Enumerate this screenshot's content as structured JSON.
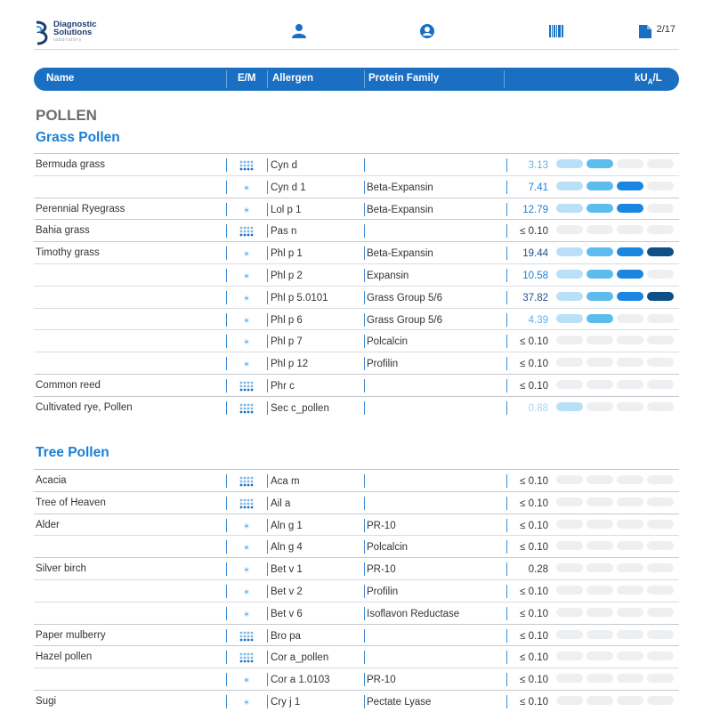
{
  "brand": {
    "name_line1": "Diagnostic",
    "name_line2": "Solutions",
    "tagline": "laboratory"
  },
  "header": {
    "page_indicator": "2/17"
  },
  "columns": {
    "name": "Name",
    "em": "E/M",
    "allergen": "Allergen",
    "family": "Protein Family",
    "unit_main": "kU",
    "unit_sub": "A",
    "unit_tail": "/L"
  },
  "section_title": "POLLEN",
  "colors": {
    "accent": "#1b6fc3",
    "level1": "#b9e0f7",
    "level2": "#5cbcee",
    "level3": "#1b86e0",
    "level4": "#0f4f87",
    "empty": "#eeeff1"
  },
  "groups": [
    {
      "title": "Grass Pollen",
      "rows": [
        {
          "name": "Bermuda grass",
          "em": "extract",
          "allergen": "Cyn d",
          "family": "",
          "value": "3.13",
          "level": 2,
          "value_color": "#5cb0ea"
        },
        {
          "name": "",
          "em": "molecule",
          "allergen": "Cyn d 1",
          "family": "Beta-Expansin",
          "value": "7.41",
          "level": 3,
          "value_color": "#1b7fd4"
        },
        {
          "name": "Perennial Ryegrass",
          "em": "molecule",
          "allergen": "Lol p 1",
          "family": "Beta-Expansin",
          "value": "12.79",
          "level": 3,
          "value_color": "#1b7fd4"
        },
        {
          "name": "Bahia grass",
          "em": "extract",
          "allergen": "Pas n",
          "family": "",
          "value": "≤ 0.10",
          "level": 0,
          "value_color": "#333333"
        },
        {
          "name": "Timothy grass",
          "em": "molecule",
          "allergen": "Phl p 1",
          "family": "Beta-Expansin",
          "value": "19.44",
          "level": 4,
          "value_color": "#1f4e8a"
        },
        {
          "name": "",
          "em": "molecule",
          "allergen": "Phl p 2",
          "family": "Expansin",
          "value": "10.58",
          "level": 3,
          "value_color": "#1b7fd4"
        },
        {
          "name": "",
          "em": "molecule",
          "allergen": "Phl p 5.0101",
          "family": "Grass Group 5/6",
          "value": "37.82",
          "level": 4,
          "value_color": "#1f4e8a"
        },
        {
          "name": "",
          "em": "molecule",
          "allergen": "Phl p 6",
          "family": "Grass Group 5/6",
          "value": "4.39",
          "level": 2,
          "value_color": "#5cb0ea"
        },
        {
          "name": "",
          "em": "molecule",
          "allergen": "Phl p 7",
          "family": "Polcalcin",
          "value": "≤ 0.10",
          "level": 0,
          "value_color": "#333333"
        },
        {
          "name": "",
          "em": "molecule",
          "allergen": "Phl p 12",
          "family": "Profilin",
          "value": "≤ 0.10",
          "level": 0,
          "value_color": "#333333"
        },
        {
          "name": "Common reed",
          "em": "extract",
          "allergen": "Phr c",
          "family": "",
          "value": "≤ 0.10",
          "level": 0,
          "value_color": "#333333"
        },
        {
          "name": "Cultivated rye, Pollen",
          "em": "extract",
          "allergen": "Sec c_pollen",
          "family": "",
          "value": "0.88",
          "level": 1,
          "value_color": "#a9d6f3"
        }
      ]
    },
    {
      "title": "Tree Pollen",
      "rows": [
        {
          "name": "Acacia",
          "em": "extract",
          "allergen": "Aca m",
          "family": "",
          "value": "≤ 0.10",
          "level": 0,
          "value_color": "#333333"
        },
        {
          "name": "Tree of Heaven",
          "em": "extract",
          "allergen": "Ail a",
          "family": "",
          "value": "≤ 0.10",
          "level": 0,
          "value_color": "#333333"
        },
        {
          "name": "Alder",
          "em": "molecule",
          "allergen": "Aln g 1",
          "family": "PR-10",
          "value": "≤ 0.10",
          "level": 0,
          "value_color": "#333333"
        },
        {
          "name": "",
          "em": "molecule",
          "allergen": "Aln g 4",
          "family": "Polcalcin",
          "value": "≤ 0.10",
          "level": 0,
          "value_color": "#333333"
        },
        {
          "name": "Silver birch",
          "em": "molecule",
          "allergen": "Bet v 1",
          "family": "PR-10",
          "value": "0.28",
          "level": 0,
          "value_color": "#333333"
        },
        {
          "name": "",
          "em": "molecule",
          "allergen": "Bet v 2",
          "family": "Profilin",
          "value": "≤ 0.10",
          "level": 0,
          "value_color": "#333333"
        },
        {
          "name": "",
          "em": "molecule",
          "allergen": "Bet v 6",
          "family": "Isoflavon Reductase",
          "value": "≤ 0.10",
          "level": 0,
          "value_color": "#333333"
        },
        {
          "name": "Paper mulberry",
          "em": "extract",
          "allergen": "Bro pa",
          "family": "",
          "value": "≤ 0.10",
          "level": 0,
          "value_color": "#333333"
        },
        {
          "name": "Hazel pollen",
          "em": "extract",
          "allergen": "Cor a_pollen",
          "family": "",
          "value": "≤ 0.10",
          "level": 0,
          "value_color": "#333333"
        },
        {
          "name": "",
          "em": "molecule",
          "allergen": "Cor a 1.0103",
          "family": "PR-10",
          "value": "≤ 0.10",
          "level": 0,
          "value_color": "#333333"
        },
        {
          "name": "Sugi",
          "em": "molecule",
          "allergen": "Cry j 1",
          "family": "Pectate Lyase",
          "value": "≤ 0.10",
          "level": 0,
          "value_color": "#333333"
        }
      ]
    }
  ]
}
